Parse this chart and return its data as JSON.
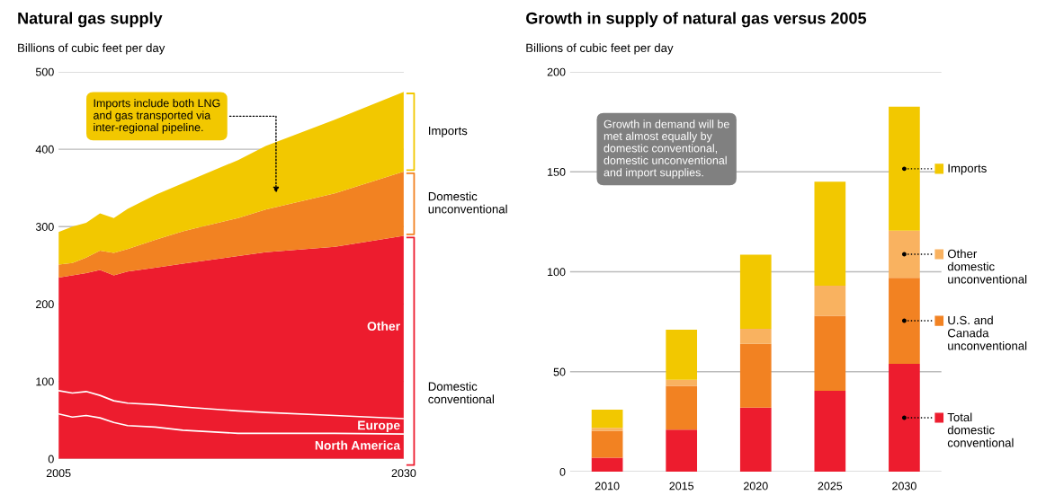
{
  "chart_data": [
    {
      "type": "area",
      "stacked": true,
      "title": "Natural gas supply",
      "ylabel": "Billions of cubic feet per day",
      "x": [
        2005,
        2006,
        2007,
        2008,
        2009,
        2010,
        2012,
        2014,
        2018,
        2020,
        2025,
        2030
      ],
      "series": [
        {
          "name": "North America",
          "color": "#ed1c2e",
          "values": [
            58,
            54,
            56,
            53,
            47,
            43,
            41,
            37,
            33,
            33,
            33,
            32
          ]
        },
        {
          "name": "Europe",
          "color": "#ed1c2e",
          "values": [
            30,
            31,
            31,
            29,
            28,
            29,
            29,
            30,
            29,
            27,
            23,
            20
          ]
        },
        {
          "name": "Other",
          "color": "#ed1c2e",
          "values": [
            146,
            152,
            153,
            162,
            162,
            170,
            177,
            185,
            200,
            207,
            218,
            236
          ]
        },
        {
          "name": "Domestic unconventional",
          "color": "#f28222",
          "values": [
            17,
            16,
            20,
            25,
            29,
            29,
            36,
            42,
            49,
            55,
            69,
            83
          ]
        },
        {
          "name": "Imports",
          "color": "#f2c800",
          "values": [
            42,
            47,
            45,
            48,
            45,
            52,
            58,
            62,
            75,
            82,
            95,
            103
          ]
        }
      ],
      "xlim": [
        2005,
        2030
      ],
      "xticks": [
        2005,
        2030
      ],
      "ylim": [
        0,
        500
      ],
      "yticks": [
        0,
        100,
        200,
        300,
        400,
        500
      ],
      "grid": "y",
      "annotations": [
        "Imports include both LNG\nand gas transported via\ninter-regional pipeline.",
        "Domestic\nconventional"
      ]
    },
    {
      "type": "bar",
      "stacked": true,
      "title": "Growth in supply of natural gas versus 2005",
      "ylabel": "Billions of cubic feet per day",
      "categories": [
        "2010",
        "2015",
        "2020",
        "2025",
        "2030"
      ],
      "series": [
        {
          "name": "Total\ndomestic\nconventional",
          "color": "#ed1c2e",
          "values": [
            7,
            21,
            32,
            40.5,
            54
          ]
        },
        {
          "name": "U.S. and\nCanada\nunconventional",
          "color": "#f28222",
          "values": [
            13.5,
            22,
            32,
            37.5,
            43
          ]
        },
        {
          "name": "Other\ndomestic\nunconventional",
          "color": "#f9b260",
          "values": [
            1.5,
            3,
            7.5,
            15,
            23.5
          ]
        },
        {
          "name": "Imports",
          "color": "#f2c800",
          "values": [
            9,
            25,
            37,
            52,
            62
          ]
        }
      ],
      "ylim": [
        0,
        200
      ],
      "yticks": [
        0,
        50,
        100,
        150,
        200
      ],
      "grid": "y",
      "legend": "right",
      "annotations": [
        "Growth in demand will be\nmet almost equally by\ndomestic conventional,\ndomestic unconventional\nand import supplies."
      ]
    }
  ]
}
